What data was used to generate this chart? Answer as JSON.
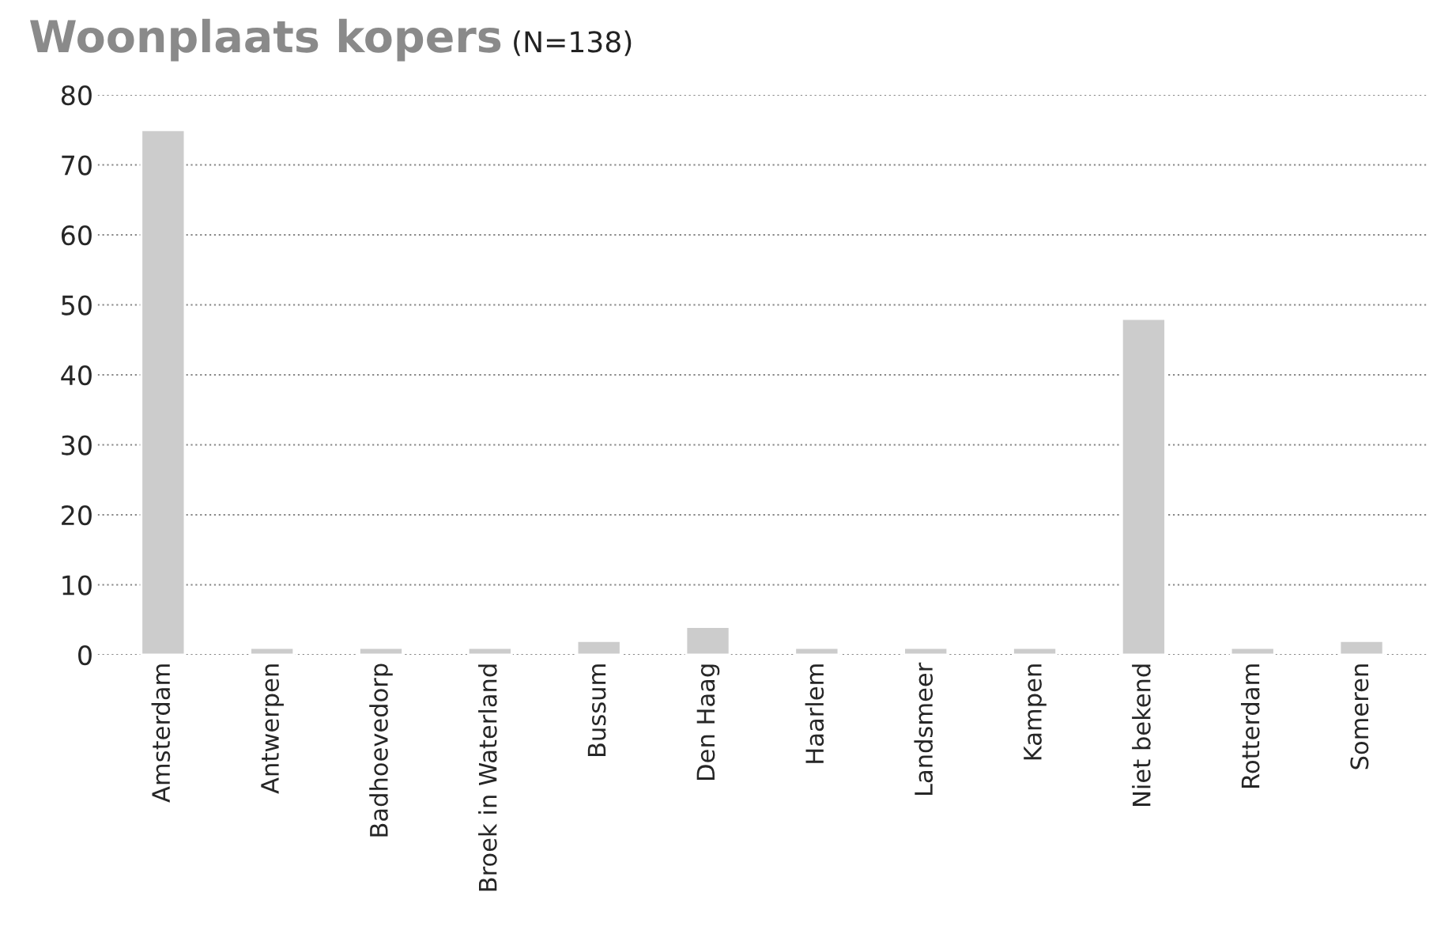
{
  "chart_data": {
    "type": "bar",
    "title": "Woonplaats kopers",
    "subtitle": "(N=138)",
    "categories": [
      "Amsterdam",
      "Antwerpen",
      "Badhoevedorp",
      "Broek in Waterland",
      "Bussum",
      "Den Haag",
      "Haarlem",
      "Landsmeer",
      "Kampen",
      "Niet bekend",
      "Rotterdam",
      "Someren"
    ],
    "values": [
      75,
      1,
      1,
      1,
      2,
      4,
      1,
      1,
      1,
      48,
      1,
      2
    ],
    "color": "#cccccc",
    "ylim": [
      0,
      80
    ],
    "yticks": [
      0,
      10,
      20,
      30,
      40,
      50,
      60,
      70,
      80
    ],
    "grid": "y",
    "legend": false
  }
}
